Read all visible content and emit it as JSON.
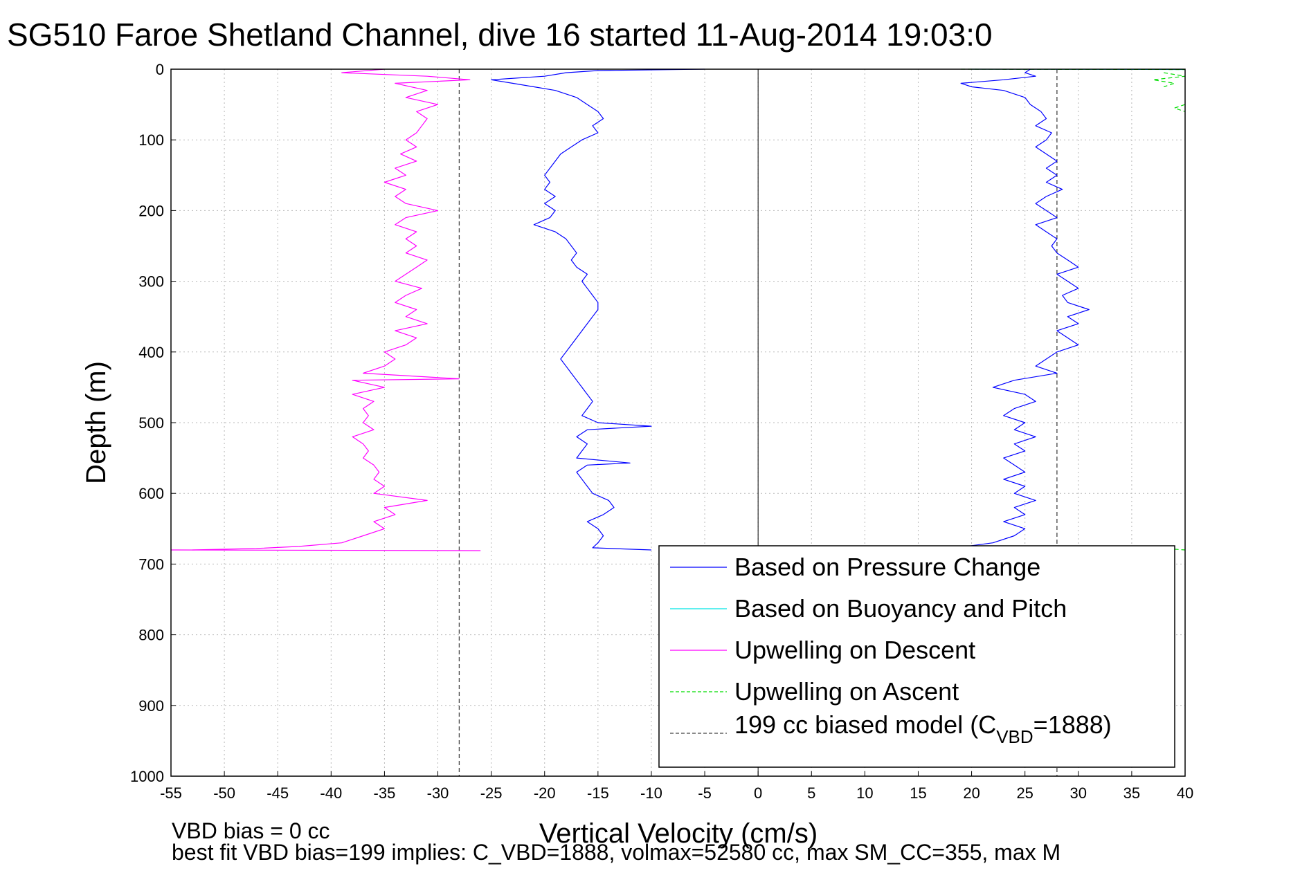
{
  "title": "SG510 Faroe Shetland Channel, dive 16 started 11-Aug-2014 19:03:0",
  "colors": {
    "pressure": "#0000ff",
    "buoyancy": "#00e5e5",
    "descent": "#ff00ff",
    "ascent": "#00dd00",
    "model": "#444444"
  },
  "footer": {
    "line1": "VBD bias = 0 cc",
    "line2": "best fit VBD bias=199 implies: C_VBD=1888, volmax=52580 cc, max SM_CC=355, max M"
  },
  "chart_data": {
    "type": "line",
    "title": "SG510 Faroe Shetland Channel, dive 16 started 11-Aug-2014 19:03:0",
    "xlabel": "Vertical Velocity (cm/s)",
    "ylabel": "Depth (m)",
    "xlim": [
      -55,
      40
    ],
    "ylim": [
      0,
      1000
    ],
    "y_reversed": true,
    "grid": true,
    "legend_position": "bottom-right",
    "xticks": [
      "-55",
      "-50",
      "-45",
      "-40",
      "-35",
      "-30",
      "-25",
      "-20",
      "-15",
      "-10",
      "-5",
      "0",
      "5",
      "10",
      "15",
      "20",
      "25",
      "30",
      "35",
      "40"
    ],
    "yticks": [
      "0",
      "100",
      "200",
      "300",
      "400",
      "500",
      "600",
      "700",
      "800",
      "900",
      "1000"
    ],
    "series": [
      {
        "name": "Based on Pressure Change",
        "style": "solid",
        "segments": [
          {
            "depth": [
              0,
              2,
              5,
              10,
              15,
              20,
              25,
              30,
              40,
              50,
              60,
              70,
              80,
              90,
              100,
              110,
              120,
              130,
              140,
              150,
              160,
              170,
              180,
              190,
              200,
              210,
              220,
              230,
              240,
              250,
              260,
              270,
              280,
              290,
              300,
              310,
              320,
              330,
              340,
              350,
              360,
              370,
              380,
              390,
              400,
              410,
              420,
              430,
              440,
              450,
              460,
              470,
              480,
              490,
              500,
              505,
              510,
              520,
              530,
              540,
              550,
              557,
              560,
              570,
              580,
              590,
              600,
              610,
              620,
              630,
              640,
              650,
              660,
              670,
              677,
              680
            ],
            "velocity": [
              -5,
              -15,
              -18,
              -20,
              -25,
              -23,
              -21,
              -19,
              -17,
              -16,
              -15,
              -14.5,
              -15.5,
              -15,
              -16.5,
              -17.5,
              -18.5,
              -19,
              -19.5,
              -20,
              -19.5,
              -20,
              -19,
              -20,
              -19,
              -19.5,
              -21,
              -19,
              -18,
              -17.5,
              -17,
              -17.5,
              -17,
              -16,
              -16.5,
              -16,
              -15.5,
              -15,
              -15,
              -15.5,
              -16,
              -16.5,
              -17,
              -17.5,
              -18,
              -18.5,
              -18,
              -17.5,
              -17,
              -16.5,
              -16,
              -15.5,
              -16,
              -16.5,
              -15,
              -10,
              -16,
              -17,
              -16,
              -16.5,
              -17,
              -12,
              -16,
              -17,
              -16.5,
              -16,
              -15.5,
              -14,
              -13.5,
              -14.5,
              -16,
              -15,
              -14.5,
              -15,
              -15.5,
              -10
            ]
          },
          {
            "depth": [
              0,
              5,
              10,
              15,
              20,
              25,
              30,
              35,
              40,
              50,
              60,
              70,
              80,
              90,
              100,
              110,
              120,
              130,
              140,
              150,
              160,
              170,
              180,
              190,
              200,
              210,
              220,
              230,
              240,
              250,
              260,
              270,
              280,
              290,
              300,
              310,
              320,
              330,
              340,
              350,
              360,
              370,
              380,
              390,
              400,
              410,
              420,
              430,
              440,
              450,
              460,
              470,
              480,
              490,
              500,
              510,
              520,
              530,
              540,
              550,
              560,
              570,
              580,
              590,
              600,
              610,
              620,
              630,
              640,
              650,
              660,
              670,
              680
            ],
            "velocity": [
              25.5,
              25,
              26,
              23,
              19,
              20,
              23,
              24,
              25,
              25.5,
              26.5,
              27,
              26,
              27.5,
              27,
              26,
              27,
              28,
              27,
              28,
              27,
              28.5,
              27,
              26,
              27,
              28,
              26,
              27,
              28,
              27.5,
              28,
              29,
              30,
              28,
              29,
              30,
              28.5,
              29,
              31,
              29,
              30,
              28,
              29,
              30,
              28,
              27,
              26,
              28,
              24,
              22,
              25,
              26,
              24,
              23,
              25,
              24,
              26,
              24,
              25,
              23,
              24,
              25,
              23,
              25,
              24,
              26,
              24,
              25,
              23,
              25,
              24,
              22,
              17
            ]
          }
        ]
      },
      {
        "name": "Based on Buoyancy and Pitch",
        "style": "solid",
        "segments": [
          {
            "depth": [
              0,
              0.5
            ],
            "velocity": [
              20,
              40
            ]
          }
        ]
      },
      {
        "name": "Upwelling on Descent",
        "style": "solid",
        "segments": [
          {
            "depth": [
              0,
              5,
              10,
              15,
              20,
              30,
              40,
              50,
              60,
              70,
              80,
              90,
              100,
              110,
              120,
              130,
              140,
              150,
              160,
              170,
              180,
              190,
              200,
              210,
              220,
              230,
              240,
              250,
              260,
              270,
              280,
              290,
              300,
              310,
              320,
              330,
              340,
              350,
              360,
              370,
              380,
              390,
              400,
              410,
              420,
              430,
              438,
              440,
              450,
              460,
              470,
              480,
              490,
              500,
              510,
              520,
              530,
              540,
              550,
              560,
              570,
              580,
              590,
              600,
              610,
              620,
              630,
              640,
              650,
              660,
              670,
              675,
              678,
              680
            ],
            "velocity": [
              -35,
              -39,
              -31,
              -27,
              -34,
              -31,
              -33,
              -30,
              -32,
              -31,
              -31.5,
              -32,
              -33,
              -32,
              -33.5,
              -32,
              -34,
              -33,
              -35,
              -33,
              -34,
              -33,
              -30,
              -33,
              -34,
              -32,
              -33,
              -32,
              -33,
              -31,
              -32,
              -33,
              -34,
              -31.5,
              -33,
              -34,
              -32,
              -33,
              -31,
              -34,
              -32,
              -33,
              -35,
              -34,
              -35,
              -37,
              -28,
              -38,
              -35,
              -38,
              -36,
              -37,
              -36.5,
              -37,
              -36,
              -38,
              -37,
              -36.5,
              -37,
              -36,
              -35.5,
              -36,
              -35,
              -36,
              -31,
              -35,
              -34,
              -36,
              -35,
              -37,
              -39,
              -43,
              -47,
              -53
            ]
          },
          {
            "depth": [
              680,
              681
            ],
            "velocity": [
              -55,
              -26
            ]
          }
        ]
      },
      {
        "name": "Upwelling on Ascent",
        "style": "dashed",
        "segments": [
          {
            "depth": [
              0,
              0.5
            ],
            "velocity": [
              19,
              40
            ]
          },
          {
            "depth": [
              5,
              10,
              15,
              20,
              25
            ],
            "velocity": [
              38,
              40,
              37,
              39,
              38
            ]
          },
          {
            "depth": [
              50,
              55,
              60
            ],
            "velocity": [
              40,
              39,
              40
            ]
          },
          {
            "depth": [
              679,
              680
            ],
            "velocity": [
              39,
              40
            ]
          }
        ]
      },
      {
        "name": "199 cc biased model (C_VBD=1888)",
        "style": "dashed",
        "segments": [
          {
            "depth": [
              0,
              1000
            ],
            "velocity": [
              -28,
              -28
            ]
          },
          {
            "depth": [
              0,
              1000
            ],
            "velocity": [
              28,
              28
            ]
          }
        ]
      }
    ],
    "vline_x": 0
  }
}
